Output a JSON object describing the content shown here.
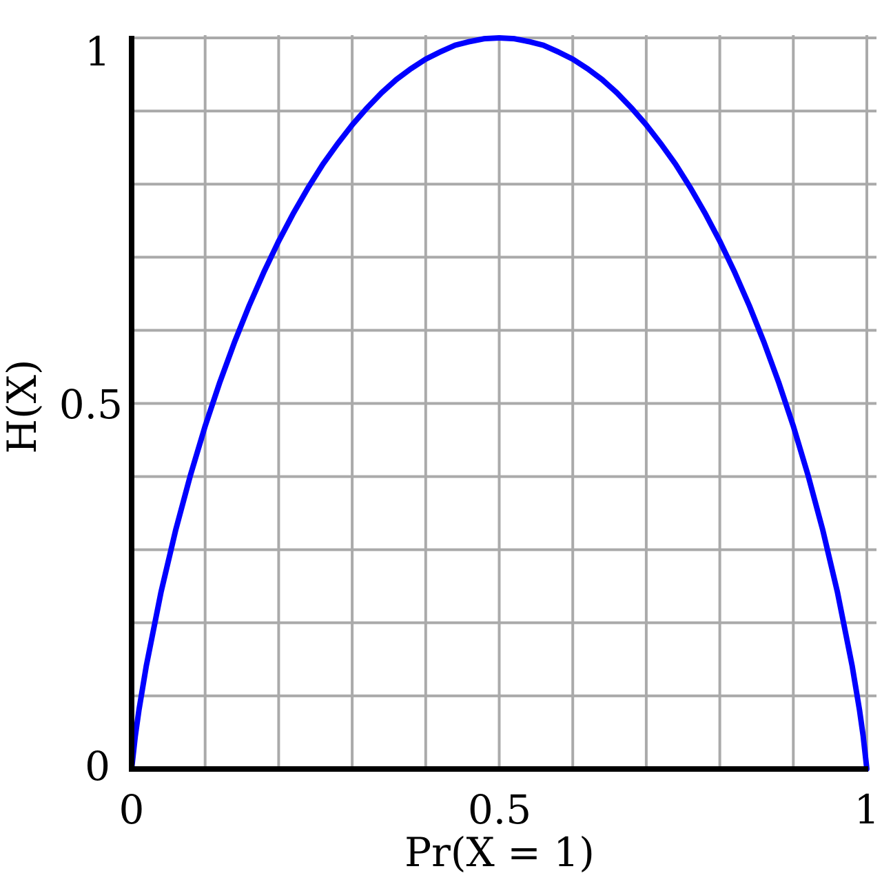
{
  "chart_data": {
    "type": "line",
    "title": "",
    "xlabel": "Pr(X = 1)",
    "ylabel": "H(X)",
    "xlim": [
      0,
      1
    ],
    "ylim": [
      0,
      1
    ],
    "grid": true,
    "grid_step": 0.1,
    "x_ticks": [
      "0",
      "0.5",
      "1"
    ],
    "y_ticks": [
      "0",
      "0.5",
      "1"
    ],
    "colors": {
      "line": "#0000ff",
      "grid": "#aaaaaa",
      "axes": "#000000"
    },
    "series": [
      {
        "x": [
          0,
          0.005,
          0.01,
          0.02,
          0.04,
          0.06,
          0.08,
          0.1,
          0.12,
          0.14,
          0.16,
          0.18,
          0.2,
          0.22,
          0.24,
          0.26,
          0.28,
          0.3,
          0.32,
          0.34,
          0.36,
          0.38,
          0.4,
          0.42,
          0.44,
          0.46,
          0.48,
          0.5,
          0.52,
          0.54,
          0.56,
          0.58,
          0.6,
          0.62,
          0.64,
          0.66,
          0.68,
          0.7,
          0.72,
          0.74,
          0.76,
          0.78,
          0.8,
          0.82,
          0.84,
          0.86,
          0.88,
          0.9,
          0.92,
          0.94,
          0.96,
          0.98,
          0.99,
          0.995,
          1
        ],
        "y": [
          0,
          0.045,
          0.081,
          0.141,
          0.242,
          0.327,
          0.402,
          0.469,
          0.529,
          0.584,
          0.634,
          0.68,
          0.722,
          0.76,
          0.795,
          0.827,
          0.855,
          0.881,
          0.904,
          0.925,
          0.943,
          0.958,
          0.971,
          0.981,
          0.99,
          0.995,
          0.999,
          1,
          0.999,
          0.995,
          0.99,
          0.981,
          0.971,
          0.958,
          0.943,
          0.925,
          0.904,
          0.881,
          0.855,
          0.827,
          0.795,
          0.76,
          0.722,
          0.68,
          0.634,
          0.584,
          0.529,
          0.469,
          0.402,
          0.327,
          0.242,
          0.141,
          0.081,
          0.045,
          0
        ]
      }
    ]
  }
}
